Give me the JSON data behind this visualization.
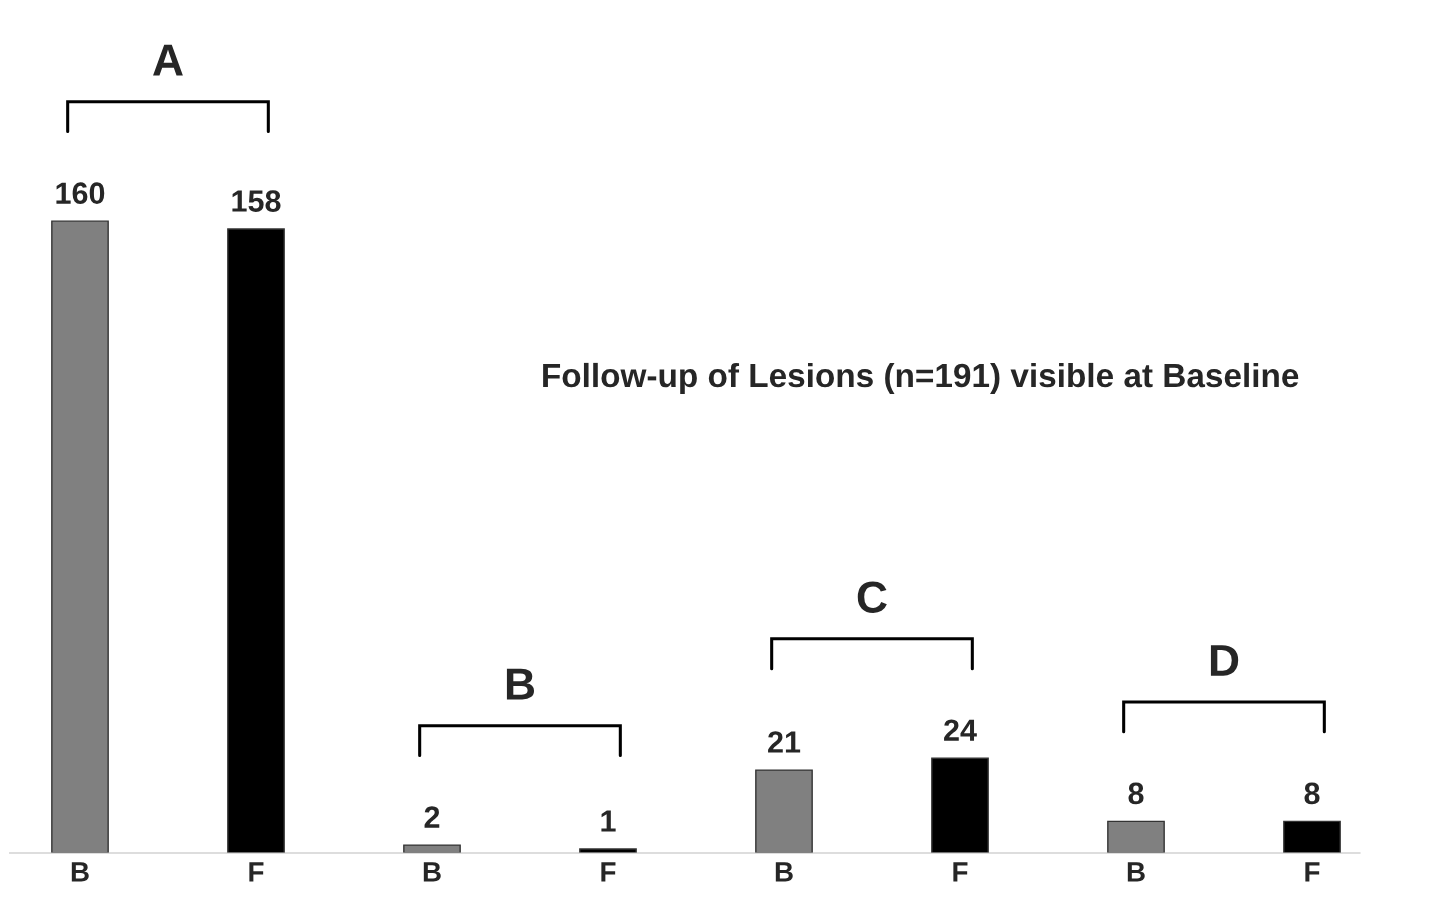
{
  "chart_data": {
    "type": "bar",
    "title": "Follow-up of Lesions (n=191) visible at Baseline",
    "categories": [
      "B",
      "F",
      "B",
      "F",
      "B",
      "F",
      "B",
      "F"
    ],
    "values": [
      160,
      158,
      2,
      1,
      21,
      24,
      8,
      8
    ],
    "colors": [
      "#808080",
      "#000000",
      "#808080",
      "#000000",
      "#808080",
      "#000000",
      "#808080",
      "#000000"
    ],
    "data_labels": true,
    "annotations": [
      "A",
      "B",
      "C",
      "D"
    ]
  }
}
